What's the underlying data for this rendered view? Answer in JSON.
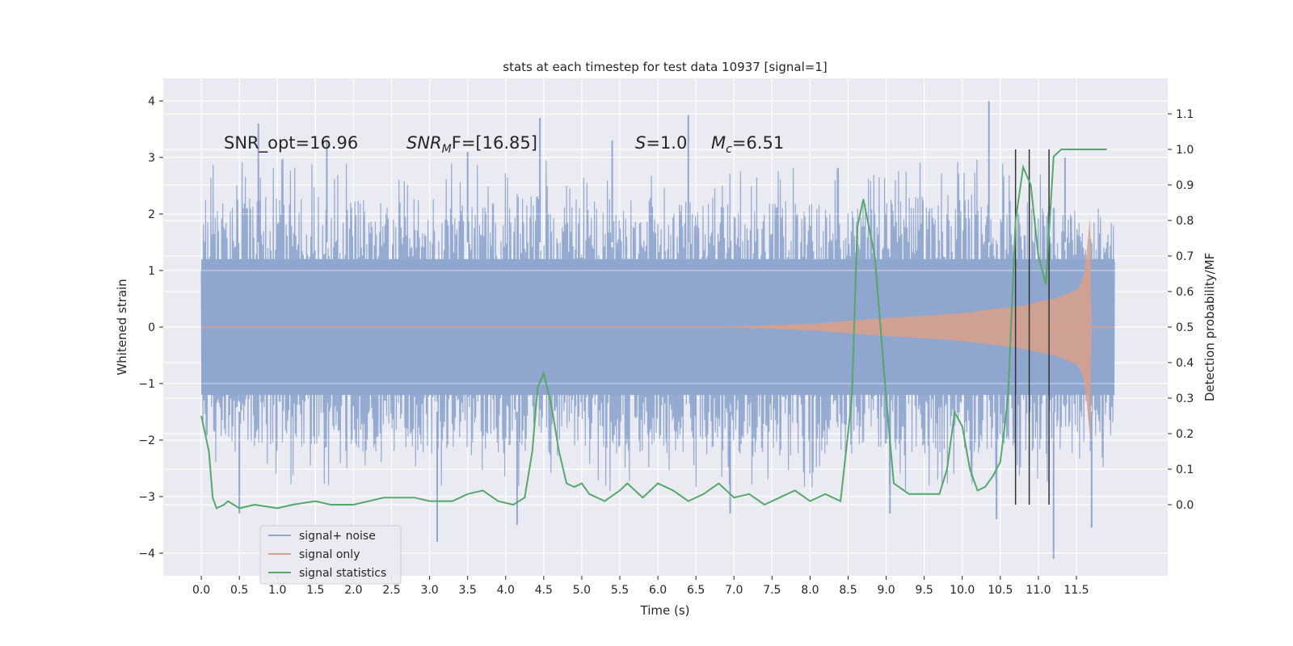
{
  "chart_data": {
    "type": "line",
    "title": "stats at each timestep for test data 10937 [signal=1]",
    "xlabel": "Time (s)",
    "ylabel_left": "Whitened strain",
    "ylabel_right": "Detection probability/MF",
    "xlim": [
      -0.5,
      12.7
    ],
    "ylim_left": [
      -4.4,
      4.4
    ],
    "ylim_right": [
      -0.2,
      1.2
    ],
    "xticks": [
      "0.0",
      "0.5",
      "1.0",
      "1.5",
      "2.0",
      "2.5",
      "3.0",
      "3.5",
      "4.0",
      "4.5",
      "5.0",
      "5.5",
      "6.0",
      "6.5",
      "7.0",
      "7.5",
      "8.0",
      "8.5",
      "9.0",
      "9.5",
      "10.0",
      "10.5",
      "11.0",
      "11.5"
    ],
    "yticks_left": [
      "4",
      "3",
      "2",
      "1",
      "0",
      "−1",
      "−2",
      "−3",
      "−4"
    ],
    "yticks_right": [
      "1.1",
      "1.0",
      "0.9",
      "0.8",
      "0.7",
      "0.6",
      "0.5",
      "0.4",
      "0.3",
      "0.2",
      "0.1",
      "0.0"
    ],
    "annotations": {
      "snr_opt": "SNR_opt=16.96",
      "snr_mf_main": "SNR",
      "snr_mf_sub": "M",
      "snr_mf_rest": "F=[16.85]",
      "s_var": "S",
      "s_rest": "=1.0",
      "mc_var": "M",
      "mc_sub": "c",
      "mc_rest": "=6.51"
    },
    "legend": [
      "signal+ noise",
      "signal only",
      "signal statistics"
    ],
    "colors": {
      "noise": "#8fa6cf",
      "signal": "#d9a08a",
      "stat": "#55a868",
      "vline": "#333333",
      "background": "#eaeaf2",
      "grid": "#ffffff"
    },
    "series": [
      {
        "name": "signal+ noise",
        "x_range": [
          0.0,
          12.0
        ],
        "envelope_upper": [
          [
            0.0,
            2.4
          ],
          [
            1.0,
            2.5
          ],
          [
            2.0,
            2.4
          ],
          [
            3.0,
            2.4
          ],
          [
            4.0,
            2.5
          ],
          [
            5.0,
            2.4
          ],
          [
            6.0,
            2.4
          ],
          [
            7.0,
            2.4
          ],
          [
            8.0,
            2.3
          ],
          [
            9.0,
            2.4
          ],
          [
            10.0,
            2.5
          ],
          [
            11.0,
            2.3
          ],
          [
            12.0,
            2.0
          ]
        ],
        "envelope_lower": [
          [
            0.0,
            -2.0
          ],
          [
            1.0,
            -2.3
          ],
          [
            2.0,
            -2.3
          ],
          [
            3.0,
            -2.4
          ],
          [
            4.0,
            -2.4
          ],
          [
            5.0,
            -2.4
          ],
          [
            6.0,
            -2.4
          ],
          [
            7.0,
            -2.4
          ],
          [
            8.0,
            -2.4
          ],
          [
            9.0,
            -2.4
          ],
          [
            10.0,
            -2.4
          ],
          [
            11.0,
            -2.4
          ],
          [
            12.0,
            -2.0
          ]
        ],
        "peaks": [
          [
            0.75,
            3.6
          ],
          [
            1.65,
            3.3
          ],
          [
            3.5,
            3.1
          ],
          [
            4.45,
            3.7
          ],
          [
            5.4,
            3.3
          ],
          [
            6.4,
            3.75
          ],
          [
            10.35,
            4.0
          ],
          [
            11.35,
            3.0
          ]
        ],
        "troughs": [
          [
            0.5,
            -3.3
          ],
          [
            3.1,
            -3.8
          ],
          [
            4.15,
            -3.5
          ],
          [
            6.95,
            -3.3
          ],
          [
            9.05,
            -3.3
          ],
          [
            10.45,
            -3.4
          ],
          [
            11.2,
            -4.1
          ],
          [
            11.7,
            -3.55
          ]
        ]
      },
      {
        "name": "signal only",
        "points": [
          [
            0.0,
            0.0
          ],
          [
            6.5,
            0.0
          ],
          [
            7.0,
            0.01
          ],
          [
            7.5,
            0.03
          ],
          [
            8.0,
            0.06
          ],
          [
            8.5,
            0.11
          ],
          [
            9.0,
            0.16
          ],
          [
            9.5,
            0.2
          ],
          [
            10.0,
            0.25
          ],
          [
            10.5,
            0.33
          ],
          [
            10.8,
            0.38
          ],
          [
            11.0,
            0.45
          ],
          [
            11.2,
            0.5
          ],
          [
            11.4,
            0.6
          ],
          [
            11.5,
            0.66
          ],
          [
            11.55,
            0.75
          ],
          [
            11.6,
            0.95
          ],
          [
            11.63,
            1.25
          ],
          [
            11.66,
            1.7
          ],
          [
            11.68,
            1.95
          ],
          [
            11.7,
            0.0
          ],
          [
            12.0,
            0.0
          ]
        ]
      },
      {
        "name": "signal statistics",
        "points": [
          [
            0.0,
            0.25
          ],
          [
            0.1,
            0.15
          ],
          [
            0.15,
            0.02
          ],
          [
            0.2,
            -0.01
          ],
          [
            0.3,
            0.0
          ],
          [
            0.35,
            0.01
          ],
          [
            0.5,
            -0.01
          ],
          [
            0.7,
            0.0
          ],
          [
            1.0,
            -0.01
          ],
          [
            1.2,
            0.0
          ],
          [
            1.5,
            0.01
          ],
          [
            1.7,
            0.0
          ],
          [
            2.0,
            0.0
          ],
          [
            2.2,
            0.01
          ],
          [
            2.4,
            0.02
          ],
          [
            2.6,
            0.02
          ],
          [
            2.8,
            0.02
          ],
          [
            3.0,
            0.01
          ],
          [
            3.3,
            0.01
          ],
          [
            3.5,
            0.03
          ],
          [
            3.7,
            0.04
          ],
          [
            3.9,
            0.01
          ],
          [
            4.1,
            0.0
          ],
          [
            4.25,
            0.02
          ],
          [
            4.35,
            0.15
          ],
          [
            4.42,
            0.33
          ],
          [
            4.5,
            0.37
          ],
          [
            4.6,
            0.28
          ],
          [
            4.7,
            0.15
          ],
          [
            4.8,
            0.06
          ],
          [
            4.9,
            0.05
          ],
          [
            5.0,
            0.06
          ],
          [
            5.1,
            0.03
          ],
          [
            5.3,
            0.01
          ],
          [
            5.5,
            0.04
          ],
          [
            5.6,
            0.06
          ],
          [
            5.8,
            0.02
          ],
          [
            6.0,
            0.06
          ],
          [
            6.2,
            0.04
          ],
          [
            6.4,
            0.01
          ],
          [
            6.6,
            0.03
          ],
          [
            6.8,
            0.06
          ],
          [
            7.0,
            0.02
          ],
          [
            7.2,
            0.03
          ],
          [
            7.4,
            0.0
          ],
          [
            7.6,
            0.02
          ],
          [
            7.8,
            0.04
          ],
          [
            8.0,
            0.01
          ],
          [
            8.2,
            0.03
          ],
          [
            8.4,
            0.01
          ],
          [
            8.55,
            0.3
          ],
          [
            8.62,
            0.78
          ],
          [
            8.7,
            0.86
          ],
          [
            8.85,
            0.7
          ],
          [
            9.0,
            0.3
          ],
          [
            9.1,
            0.06
          ],
          [
            9.3,
            0.03
          ],
          [
            9.5,
            0.03
          ],
          [
            9.7,
            0.03
          ],
          [
            9.8,
            0.1
          ],
          [
            9.9,
            0.26
          ],
          [
            10.0,
            0.22
          ],
          [
            10.1,
            0.1
          ],
          [
            10.2,
            0.04
          ],
          [
            10.3,
            0.05
          ],
          [
            10.4,
            0.08
          ],
          [
            10.5,
            0.12
          ],
          [
            10.6,
            0.3
          ],
          [
            10.7,
            0.8
          ],
          [
            10.8,
            0.95
          ],
          [
            10.9,
            0.9
          ],
          [
            11.0,
            0.7
          ],
          [
            11.1,
            0.62
          ],
          [
            11.15,
            0.8
          ],
          [
            11.2,
            0.98
          ],
          [
            11.3,
            1.0
          ],
          [
            11.5,
            1.0
          ],
          [
            11.9,
            1.0
          ]
        ]
      }
    ],
    "vlines_x": [
      10.7,
      10.88,
      11.14
    ]
  }
}
